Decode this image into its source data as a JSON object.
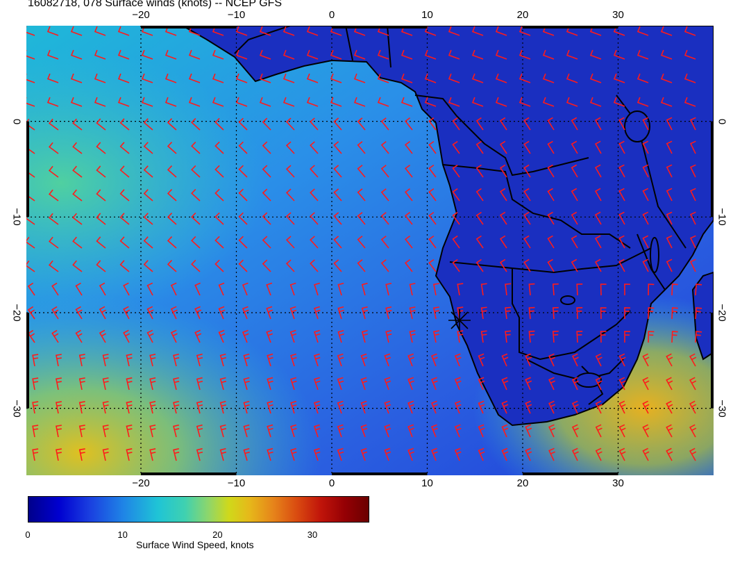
{
  "title": "16082718, 078 Surface winds (knots) -- NCEP GFS",
  "axes": {
    "x_ticks": [
      "−20",
      "−10",
      "0",
      "10",
      "20",
      "30"
    ],
    "y_ticks": [
      "0",
      "−10",
      "−20",
      "−30"
    ],
    "x_range": [
      -32,
      40
    ],
    "y_range": [
      10,
      -37
    ],
    "grid": "dotted"
  },
  "colorbar": {
    "label": "Surface Wind Speed, knots",
    "ticks": [
      "0",
      "10",
      "20",
      "30"
    ],
    "range": [
      0,
      36
    ],
    "colors": [
      "#00008b",
      "#0000d0",
      "#1a3fe0",
      "#1f85e6",
      "#1fc4d6",
      "#3fd1b0",
      "#8fd66a",
      "#d0d81a",
      "#e6b81a",
      "#e6841a",
      "#d94a10",
      "#c0140a",
      "#950004",
      "#6b0000"
    ]
  },
  "map": {
    "ocean_color": "#2a6fe8",
    "land_color": "#1a2fc0",
    "barb_color": "#ff1a1a",
    "coast_color": "#000000",
    "marker": "station-cross"
  }
}
